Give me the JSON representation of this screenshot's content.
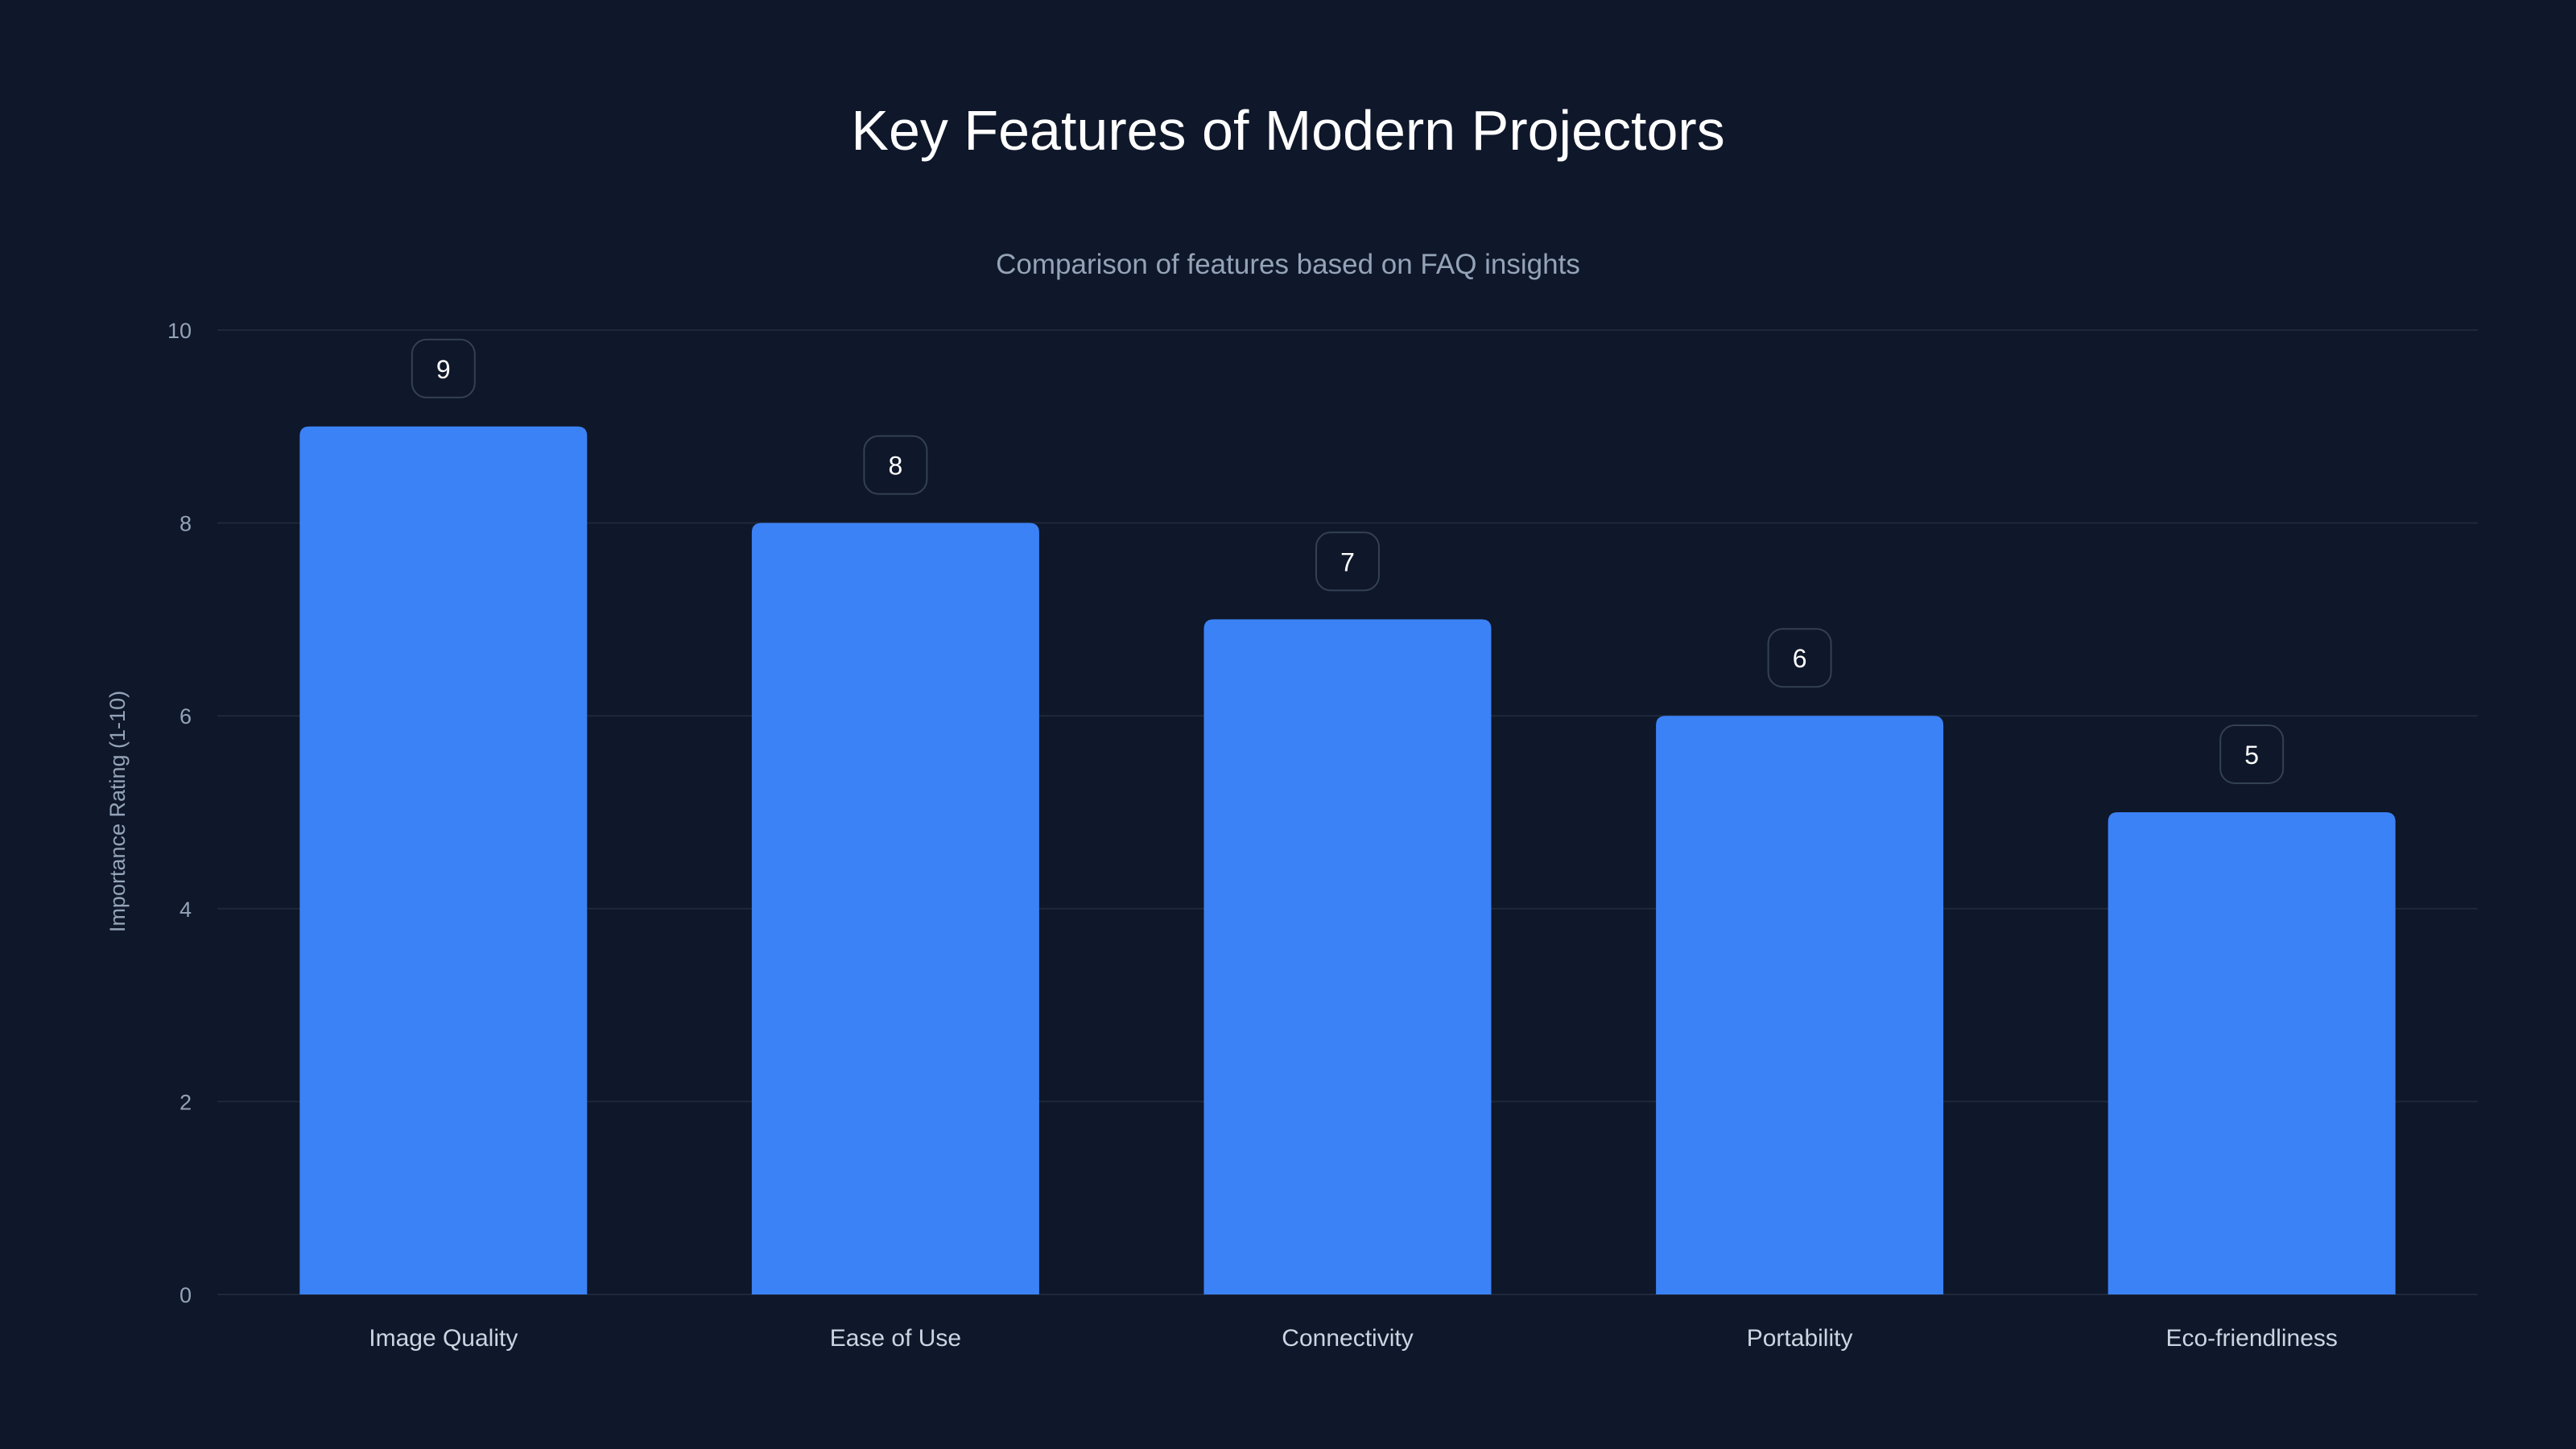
{
  "chart_data": {
    "type": "bar",
    "title": "Key Features of Modern Projectors",
    "subtitle": "Comparison of features based on FAQ insights",
    "xlabel": "",
    "ylabel": "Importance Rating (1-10)",
    "categories": [
      "Image Quality",
      "Ease of Use",
      "Connectivity",
      "Portability",
      "Eco-friendliness"
    ],
    "values": [
      9,
      8,
      7,
      6,
      5
    ],
    "ylim": [
      0,
      10
    ],
    "yticks": [
      0,
      2,
      4,
      6,
      8,
      10
    ],
    "grid": true,
    "legend": "none",
    "colors": {
      "background": "#0f172a",
      "bar": "#3b82f6",
      "grid": "#1e293b",
      "text": "#cbd5e1",
      "title": "#ffffff",
      "label_border": "#334155"
    }
  }
}
